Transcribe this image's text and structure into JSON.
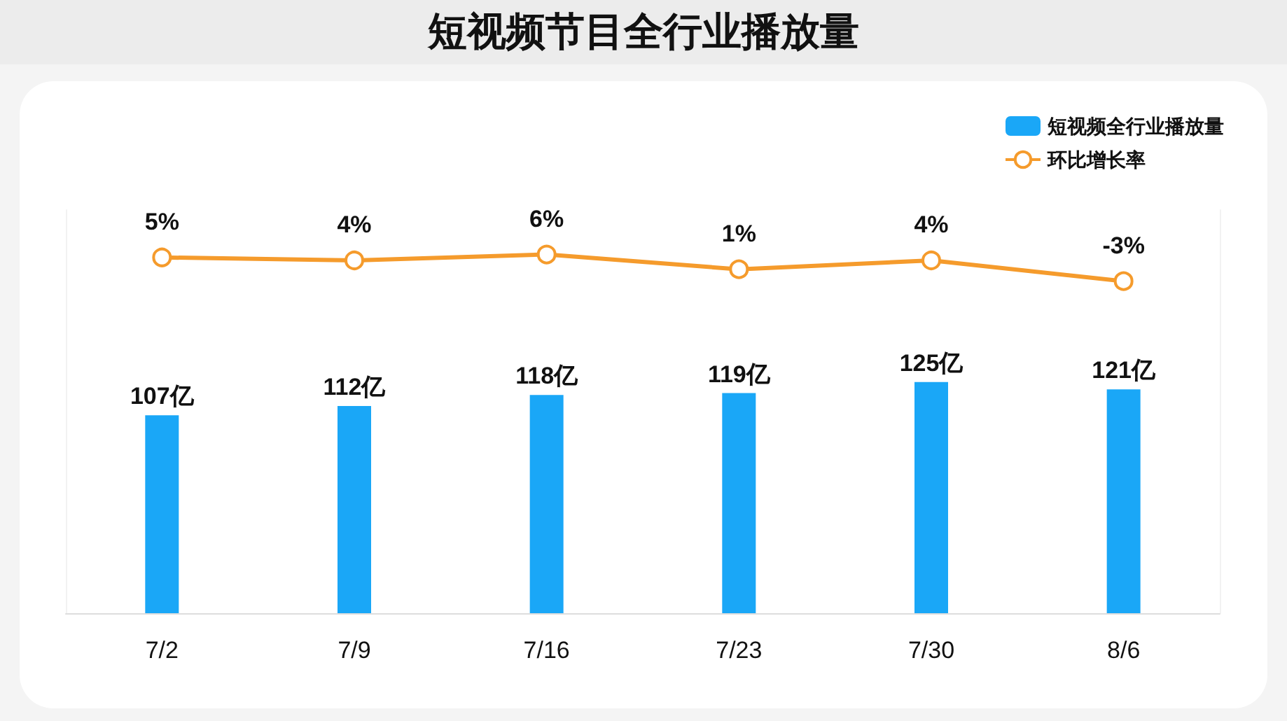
{
  "chart_data": {
    "type": "bar",
    "title": "短视频节目全行业播放量",
    "categories": [
      "7/2",
      "7/9",
      "7/16",
      "7/23",
      "7/30",
      "8/6"
    ],
    "series": [
      {
        "name": "短视频全行业播放量",
        "color": "#1aa7f7",
        "values": [
          107,
          112,
          118,
          119,
          125,
          121
        ],
        "value_labels": [
          "107亿",
          "112亿",
          "118亿",
          "119亿",
          "125亿",
          "121亿"
        ]
      },
      {
        "name": "环比增长率",
        "type": "line",
        "axis": "y2",
        "color": "#f59b2c",
        "values": [
          5,
          4,
          6,
          1,
          4,
          -3
        ],
        "value_labels": [
          "5%",
          "4%",
          "6%",
          "1%",
          "4%",
          "-3%"
        ]
      }
    ],
    "ylim": [
      0,
      218
    ],
    "y2lim": [
      -115,
      21
    ],
    "legend": "top right",
    "tick_labels": "x",
    "marker": "circle",
    "line_style": "solid"
  }
}
